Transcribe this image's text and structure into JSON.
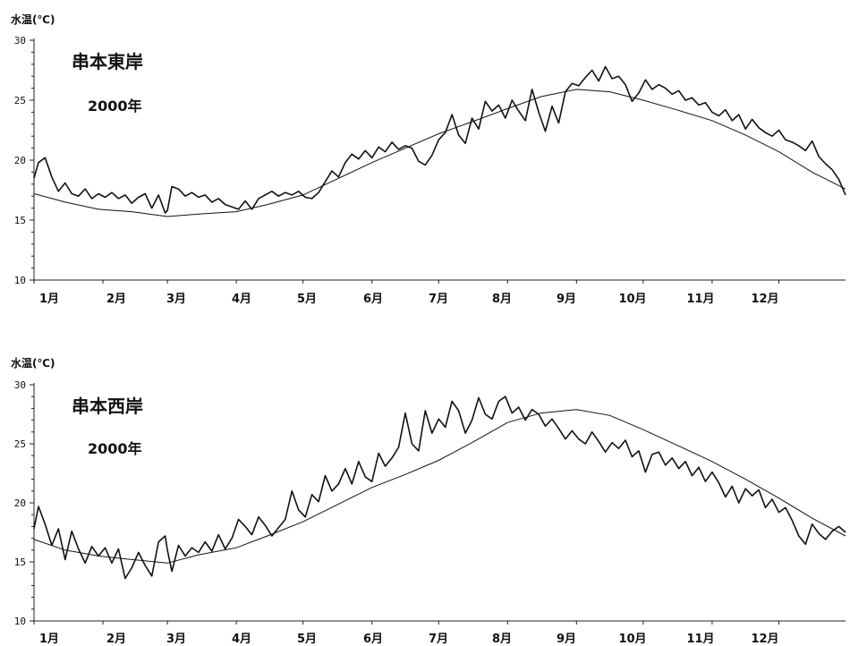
{
  "chart_data": [
    {
      "type": "line",
      "title": "串本東岸",
      "subtitle": "2000年",
      "ylabel": "水温(℃)",
      "xlabel": "",
      "ylim": [
        10,
        30
      ],
      "yticks": [
        10,
        15,
        20,
        25,
        30
      ],
      "month_labels": [
        "1月",
        "2月",
        "3月",
        "4月",
        "5月",
        "6月",
        "7月",
        "8月",
        "9月",
        "10月",
        "11月",
        "12月"
      ],
      "x_unit": "day of year",
      "xlim": [
        1,
        366
      ],
      "month_tick_days": [
        1,
        32,
        61,
        92,
        122,
        153,
        183,
        214,
        245,
        275,
        306,
        336
      ],
      "series": [
        {
          "style": "daily",
          "x": [
            1,
            3,
            6,
            9,
            12,
            15,
            18,
            21,
            24,
            27,
            30,
            33,
            36,
            39,
            42,
            45,
            48,
            51,
            54,
            57,
            60,
            61,
            63,
            66,
            69,
            72,
            75,
            78,
            81,
            84,
            87,
            90,
            93,
            96,
            99,
            102,
            105,
            108,
            111,
            114,
            117,
            120,
            123,
            126,
            129,
            132,
            135,
            138,
            141,
            144,
            147,
            150,
            153,
            156,
            159,
            162,
            165,
            168,
            171,
            174,
            177,
            180,
            183,
            186,
            189,
            192,
            195,
            198,
            201,
            204,
            207,
            210,
            213,
            216,
            219,
            222,
            225,
            228,
            231,
            234,
            237,
            240,
            243,
            246,
            249,
            252,
            255,
            258,
            261,
            264,
            267,
            270,
            273,
            276,
            279,
            282,
            285,
            288,
            291,
            294,
            297,
            300,
            303,
            306,
            309,
            312,
            315,
            318,
            321,
            324,
            327,
            330,
            333,
            336,
            339,
            342,
            345,
            348,
            351,
            354,
            357,
            360,
            363,
            366
          ],
          "y": [
            18.5,
            19.8,
            20.2,
            18.6,
            17.4,
            18.1,
            17.2,
            17.0,
            17.6,
            16.8,
            17.2,
            16.9,
            17.3,
            16.8,
            17.1,
            16.4,
            16.9,
            17.2,
            16.0,
            17.1,
            15.6,
            15.8,
            17.8,
            17.6,
            17.0,
            17.3,
            16.9,
            17.1,
            16.5,
            16.8,
            16.3,
            16.1,
            15.9,
            16.6,
            15.9,
            16.8,
            17.1,
            17.4,
            17.0,
            17.3,
            17.1,
            17.4,
            16.9,
            16.8,
            17.3,
            18.2,
            19.1,
            18.6,
            19.8,
            20.5,
            20.1,
            20.8,
            20.2,
            21.1,
            20.7,
            21.5,
            20.9,
            21.2,
            21.0,
            19.9,
            19.6,
            20.4,
            21.7,
            22.3,
            23.8,
            22.1,
            21.4,
            23.5,
            22.6,
            24.9,
            24.1,
            24.6,
            23.5,
            25.0,
            24.1,
            23.3,
            25.9,
            24.0,
            22.4,
            24.5,
            23.1,
            25.7,
            26.4,
            26.2,
            26.9,
            27.5,
            26.6,
            27.8,
            26.8,
            27.0,
            26.3,
            24.9,
            25.6,
            26.7,
            25.9,
            26.3,
            26.0,
            25.5,
            25.8,
            25.0,
            25.2,
            24.6,
            24.8,
            24.0,
            23.7,
            24.2,
            23.3,
            23.8,
            22.6,
            23.4,
            22.7,
            22.3,
            22.0,
            22.5,
            21.7,
            21.5,
            21.2,
            20.8,
            21.6,
            20.3,
            19.7,
            19.2,
            18.4,
            17.1
          ]
        },
        {
          "style": "average",
          "x": [
            1,
            15,
            30,
            45,
            61,
            75,
            92,
            106,
            122,
            137,
            153,
            168,
            183,
            198,
            214,
            229,
            245,
            260,
            275,
            290,
            306,
            321,
            336,
            351,
            366
          ],
          "y": [
            17.2,
            16.5,
            15.9,
            15.7,
            15.3,
            15.5,
            15.7,
            16.3,
            17.1,
            18.4,
            19.8,
            21.0,
            22.2,
            23.2,
            24.3,
            25.3,
            25.9,
            25.7,
            25.0,
            24.2,
            23.3,
            22.1,
            20.7,
            19.0,
            17.6
          ]
        }
      ]
    },
    {
      "type": "line",
      "title": "串本西岸",
      "subtitle": "2000年",
      "ylabel": "水温(℃)",
      "xlabel": "",
      "ylim": [
        10,
        30
      ],
      "yticks": [
        10,
        15,
        20,
        25,
        30
      ],
      "month_labels": [
        "1月",
        "2月",
        "3月",
        "4月",
        "5月",
        "6月",
        "7月",
        "8月",
        "9月",
        "10月",
        "11月",
        "12月"
      ],
      "x_unit": "day of year",
      "xlim": [
        1,
        366
      ],
      "month_tick_days": [
        1,
        32,
        61,
        92,
        122,
        153,
        183,
        214,
        245,
        275,
        306,
        336
      ],
      "series": [
        {
          "style": "daily",
          "x": [
            1,
            3,
            6,
            9,
            12,
            15,
            18,
            21,
            24,
            27,
            30,
            33,
            36,
            39,
            42,
            45,
            48,
            51,
            54,
            57,
            60,
            61,
            63,
            66,
            69,
            72,
            75,
            78,
            81,
            84,
            87,
            90,
            93,
            96,
            99,
            102,
            105,
            108,
            111,
            114,
            117,
            120,
            123,
            126,
            129,
            132,
            135,
            138,
            141,
            144,
            147,
            150,
            153,
            156,
            159,
            162,
            165,
            168,
            171,
            174,
            177,
            180,
            183,
            186,
            189,
            192,
            195,
            198,
            201,
            204,
            207,
            210,
            213,
            216,
            219,
            222,
            225,
            228,
            231,
            234,
            237,
            240,
            243,
            246,
            249,
            252,
            255,
            258,
            261,
            264,
            267,
            270,
            273,
            276,
            279,
            282,
            285,
            288,
            291,
            294,
            297,
            300,
            303,
            306,
            309,
            312,
            315,
            318,
            321,
            324,
            327,
            330,
            333,
            336,
            339,
            342,
            345,
            348,
            351,
            354,
            357,
            360,
            363,
            366
          ],
          "y": [
            17.8,
            19.7,
            18.2,
            16.4,
            17.8,
            15.2,
            17.6,
            16.1,
            14.9,
            16.3,
            15.5,
            16.2,
            14.9,
            16.1,
            13.6,
            14.5,
            15.8,
            14.7,
            13.8,
            16.7,
            17.2,
            16.0,
            14.2,
            16.4,
            15.5,
            16.2,
            15.8,
            16.7,
            15.9,
            17.3,
            16.1,
            17.0,
            18.6,
            18.0,
            17.3,
            18.8,
            18.1,
            17.2,
            17.9,
            18.6,
            21.0,
            19.4,
            18.8,
            20.7,
            20.1,
            22.3,
            21.0,
            21.6,
            22.9,
            21.6,
            23.5,
            22.2,
            21.8,
            24.2,
            23.1,
            23.8,
            24.7,
            27.6,
            25.0,
            24.4,
            27.8,
            25.9,
            27.1,
            26.4,
            28.6,
            27.8,
            25.9,
            27.0,
            28.9,
            27.5,
            27.1,
            28.6,
            29.0,
            27.6,
            28.1,
            27.0,
            27.9,
            27.5,
            26.5,
            27.1,
            26.3,
            25.4,
            26.1,
            25.4,
            25.0,
            26.0,
            25.2,
            24.3,
            25.1,
            24.6,
            25.3,
            23.9,
            24.4,
            22.6,
            24.1,
            24.3,
            23.2,
            23.8,
            22.9,
            23.5,
            22.3,
            23.0,
            21.8,
            22.6,
            21.7,
            20.5,
            21.4,
            20.0,
            21.2,
            20.6,
            21.1,
            19.6,
            20.3,
            19.2,
            19.6,
            18.5,
            17.2,
            16.5,
            18.2,
            17.4,
            16.9,
            17.6,
            18.0,
            17.5
          ]
        },
        {
          "style": "average",
          "x": [
            1,
            15,
            30,
            45,
            61,
            75,
            92,
            106,
            122,
            137,
            153,
            168,
            183,
            198,
            214,
            229,
            245,
            260,
            275,
            290,
            306,
            321,
            336,
            351,
            366
          ],
          "y": [
            16.9,
            16.0,
            15.5,
            15.2,
            14.9,
            15.6,
            16.2,
            17.2,
            18.4,
            19.8,
            21.3,
            22.4,
            23.6,
            25.1,
            26.8,
            27.6,
            27.9,
            27.4,
            26.2,
            24.9,
            23.5,
            22.0,
            20.4,
            18.7,
            17.2
          ]
        }
      ]
    }
  ]
}
